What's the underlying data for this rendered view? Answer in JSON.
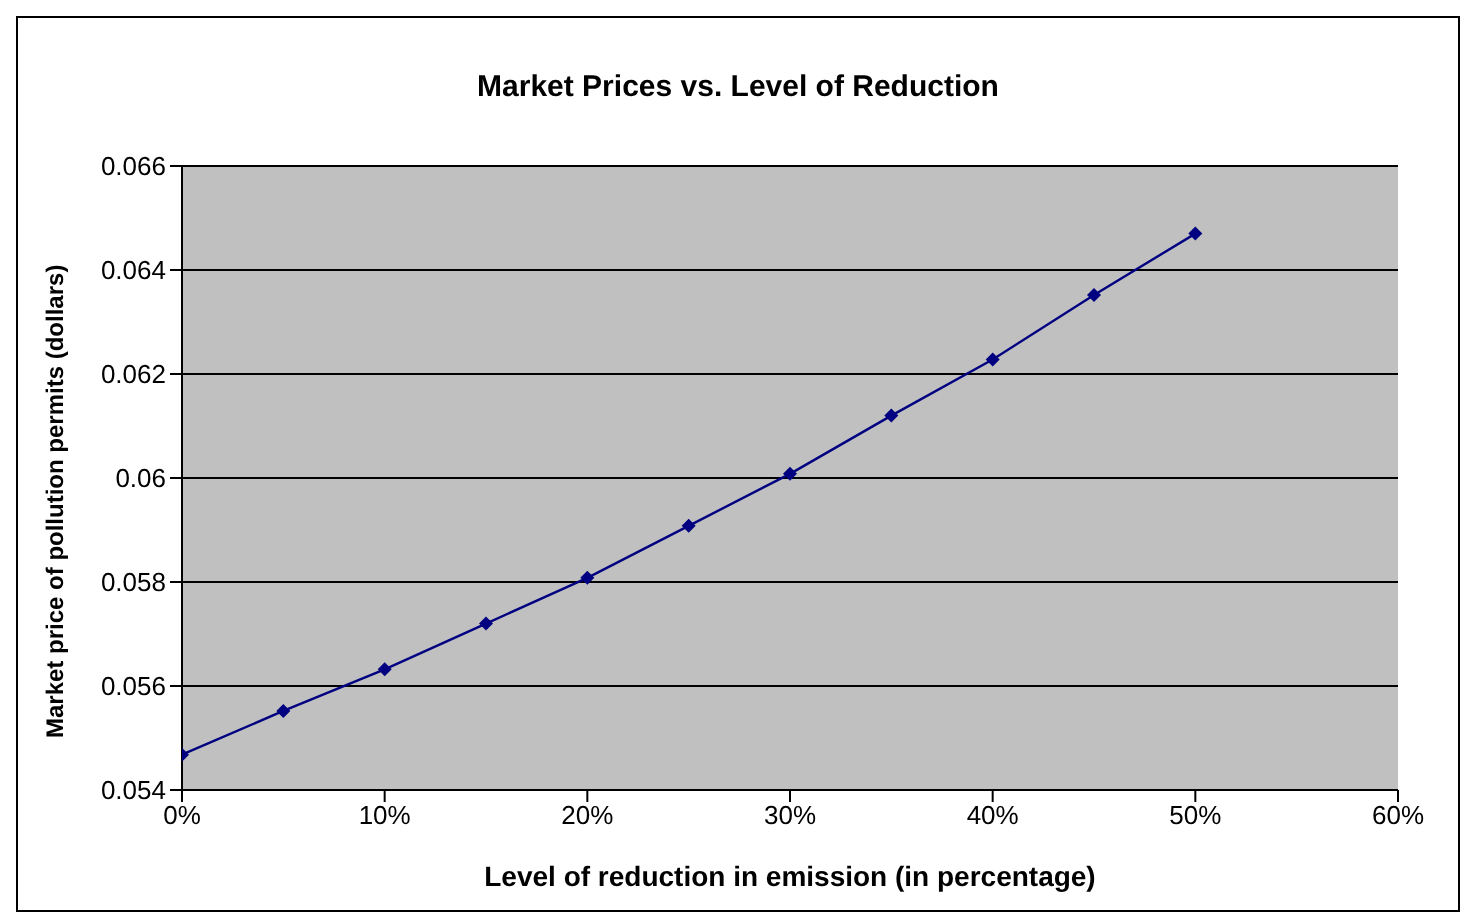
{
  "chart_data": {
    "type": "line",
    "title": "Market Prices vs. Level of Reduction",
    "xlabel": "Level of reduction in emission (in percentage)",
    "ylabel": "Market price of pollution permits (dollars)",
    "x": [
      0,
      0.05,
      0.1,
      0.15,
      0.2,
      0.25,
      0.3,
      0.35,
      0.4,
      0.45,
      0.5
    ],
    "series": [
      {
        "color": "#000080",
        "values": [
          0.05468,
          0.05552,
          0.05632,
          0.0572,
          0.05808,
          0.05908,
          0.06008,
          0.0612,
          0.06228,
          0.06352,
          0.0647
        ]
      }
    ],
    "xlim": [
      0,
      0.6
    ],
    "xticks": [
      {
        "value": 0,
        "label": "0%"
      },
      {
        "value": 0.1,
        "label": "10%"
      },
      {
        "value": 0.2,
        "label": "20%"
      },
      {
        "value": 0.3,
        "label": "30%"
      },
      {
        "value": 0.4,
        "label": "40%"
      },
      {
        "value": 0.5,
        "label": "50%"
      },
      {
        "value": 0.6,
        "label": "60%"
      }
    ],
    "ylim": [
      0.054,
      0.066
    ],
    "yticks": [
      0.054,
      0.056,
      0.058,
      0.06,
      0.062,
      0.064,
      0.066
    ],
    "grid": "y",
    "marker": "diamond",
    "line_style": "solid"
  }
}
